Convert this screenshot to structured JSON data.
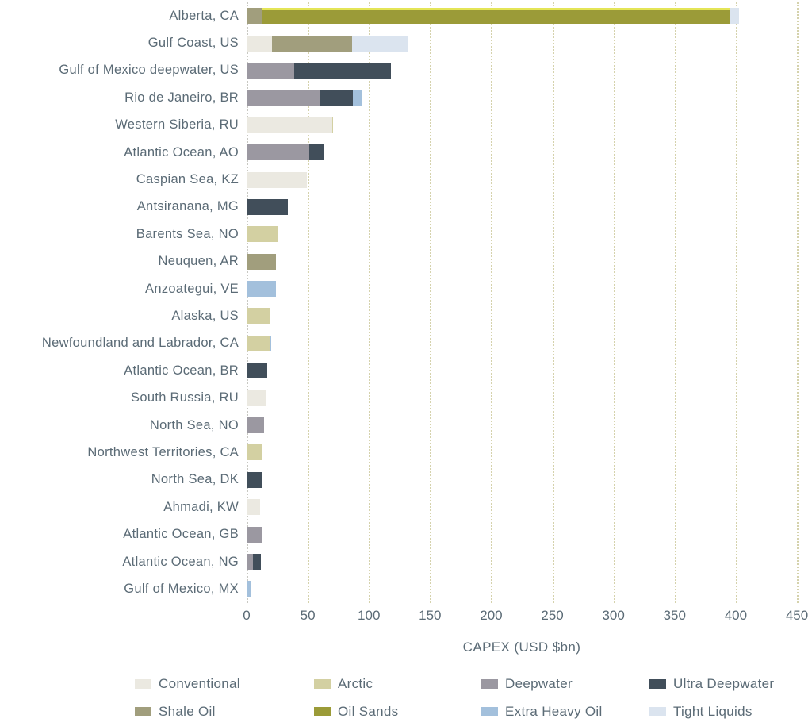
{
  "chart_data": {
    "type": "bar",
    "stacked": true,
    "orientation": "horizontal",
    "title": "",
    "xlabel": "CAPEX (USD $bn)",
    "xlim": [
      0,
      450
    ],
    "xticks": [
      0,
      50,
      100,
      150,
      200,
      250,
      300,
      350,
      400,
      450
    ],
    "grid": "vertical-dotted",
    "legend_position": "bottom",
    "categories": [
      "Alberta, CA",
      "Gulf Coast, US",
      "Gulf of Mexico deepwater, US",
      "Rio de Janeiro, BR",
      "Western Siberia, RU",
      "Atlantic Ocean, AO",
      "Caspian Sea, KZ",
      "Antsiranana, MG",
      "Barents Sea, NO",
      "Neuquen, AR",
      "Anzoategui, VE",
      "Alaska, US",
      "Newfoundland and Labrador, CA",
      "Atlantic Ocean, BR",
      "South Russia, RU",
      "North Sea, NO",
      "Northwest Territories, CA",
      "North Sea, DK",
      "Ahmadi, KW",
      "Atlantic Ocean, GB",
      "Atlantic Ocean, NG",
      "Gulf of Mexico, MX"
    ],
    "series": [
      {
        "name": "Conventional",
        "color": "#EBE9E1",
        "highlight": false,
        "values": [
          0,
          21,
          0,
          0,
          70,
          0,
          49,
          0,
          0,
          0,
          0,
          0,
          0,
          0,
          16,
          0,
          0,
          0,
          11,
          0,
          0,
          0
        ]
      },
      {
        "name": "Arctic",
        "color": "#D3D0A2",
        "highlight": false,
        "values": [
          0,
          0,
          0,
          0,
          1,
          0,
          0,
          0,
          25,
          0,
          0,
          19,
          19,
          0,
          0,
          0,
          12,
          0,
          0,
          0,
          0,
          0
        ]
      },
      {
        "name": "Deepwater",
        "color": "#9B98A1",
        "highlight": false,
        "values": [
          0,
          0,
          39,
          60,
          0,
          51,
          0,
          0,
          0,
          0,
          0,
          0,
          0,
          0,
          0,
          14,
          0,
          0,
          0,
          12,
          5,
          0
        ]
      },
      {
        "name": "Ultra Deepwater",
        "color": "#414E5A",
        "highlight": false,
        "values": [
          0,
          0,
          79,
          27,
          0,
          12,
          0,
          34,
          0,
          0,
          0,
          0,
          0,
          17,
          0,
          0,
          0,
          12,
          0,
          0,
          7,
          0
        ]
      },
      {
        "name": "Shale Oil",
        "color": "#A19E7D",
        "highlight": false,
        "values": [
          12,
          65,
          0,
          0,
          0,
          0,
          0,
          0,
          0,
          24,
          0,
          0,
          0,
          0,
          0,
          0,
          0,
          0,
          0,
          0,
          0,
          0
        ]
      },
      {
        "name": "Oil Sands",
        "color": "#9B9B38",
        "highlight": true,
        "values": [
          383,
          0,
          0,
          0,
          0,
          0,
          0,
          0,
          0,
          0,
          0,
          0,
          0,
          0,
          0,
          0,
          0,
          0,
          0,
          0,
          0,
          0
        ]
      },
      {
        "name": "Extra Heavy Oil",
        "color": "#A3C0DC",
        "highlight": false,
        "values": [
          0,
          0,
          0,
          7,
          0,
          0,
          0,
          0,
          0,
          0,
          24,
          0,
          1,
          0,
          0,
          0,
          0,
          0,
          0,
          0,
          0,
          4
        ]
      },
      {
        "name": "Tight Liquids",
        "color": "#DBE4EF",
        "highlight": false,
        "values": [
          8,
          46,
          0,
          0,
          0,
          0,
          0,
          0,
          0,
          0,
          0,
          0,
          0,
          0,
          0,
          0,
          0,
          0,
          0,
          0,
          0,
          0
        ]
      }
    ]
  },
  "colors": {
    "text": "#5B6B76",
    "gridline": "#D5D2AC",
    "axis_line": "#C8C8C2",
    "background": "#FFFFFF",
    "oil_sands_top_highlight": "#E4E557"
  }
}
